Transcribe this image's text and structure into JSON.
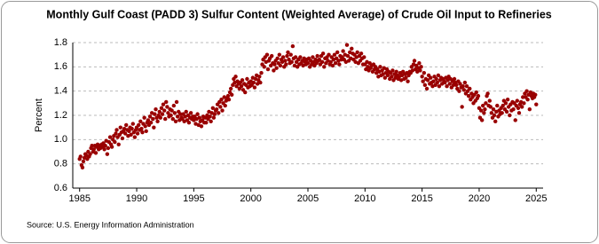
{
  "chart_data": {
    "type": "scatter",
    "title": "Monthly Gulf Coast (PADD 3) Sulfur Content (Weighted Average) of Crude Oil Input to Refineries",
    "ylabel": "Percent",
    "source": "Source: U.S. Energy Information Administration",
    "color": "#990000",
    "grid": true,
    "xlim": [
      1984.4,
      2025.6
    ],
    "ylim": [
      0.6,
      1.8
    ],
    "xticks": [
      1985,
      1990,
      1995,
      2000,
      2005,
      2010,
      2015,
      2020,
      2025
    ],
    "yticks": [
      0.6,
      0.8,
      {
        "value": 1,
        "label": "1.0"
      },
      1.2,
      1.4,
      1.6,
      1.8
    ],
    "x": [
      1985,
      1985.08,
      1985.17,
      1985.25,
      1985.33,
      1985.42,
      1985.5,
      1985.58,
      1985.67,
      1985.75,
      1985.83,
      1985.92,
      1986,
      1986.08,
      1986.17,
      1986.25,
      1986.33,
      1986.42,
      1986.5,
      1986.58,
      1986.67,
      1986.75,
      1986.83,
      1986.92,
      1987,
      1987.08,
      1987.17,
      1987.25,
      1987.33,
      1987.42,
      1987.5,
      1987.58,
      1987.67,
      1987.75,
      1987.83,
      1987.92,
      1988,
      1988.08,
      1988.17,
      1988.25,
      1988.33,
      1988.42,
      1988.5,
      1988.58,
      1988.67,
      1988.75,
      1988.83,
      1988.92,
      1989,
      1989.08,
      1989.17,
      1989.25,
      1989.33,
      1989.42,
      1989.5,
      1989.58,
      1989.67,
      1989.75,
      1989.83,
      1989.92,
      1990,
      1990.08,
      1990.17,
      1990.25,
      1990.33,
      1990.42,
      1990.5,
      1990.58,
      1990.67,
      1990.75,
      1990.83,
      1990.92,
      1991,
      1991.08,
      1991.17,
      1991.25,
      1991.33,
      1991.42,
      1991.5,
      1991.58,
      1991.67,
      1991.75,
      1991.83,
      1991.92,
      1992,
      1992.08,
      1992.17,
      1992.25,
      1992.33,
      1992.42,
      1992.5,
      1992.58,
      1992.67,
      1992.75,
      1992.83,
      1992.92,
      1993,
      1993.08,
      1993.17,
      1993.25,
      1993.33,
      1993.42,
      1993.5,
      1993.58,
      1993.67,
      1993.75,
      1993.83,
      1993.92,
      1994,
      1994.08,
      1994.17,
      1994.25,
      1994.33,
      1994.42,
      1994.5,
      1994.58,
      1994.67,
      1994.75,
      1994.83,
      1994.92,
      1995,
      1995.08,
      1995.17,
      1995.25,
      1995.33,
      1995.42,
      1995.5,
      1995.58,
      1995.67,
      1995.75,
      1995.83,
      1995.92,
      1996,
      1996.08,
      1996.17,
      1996.25,
      1996.33,
      1996.42,
      1996.5,
      1996.58,
      1996.67,
      1996.75,
      1996.83,
      1996.92,
      1997,
      1997.08,
      1997.17,
      1997.25,
      1997.33,
      1997.42,
      1997.5,
      1997.58,
      1997.67,
      1997.75,
      1997.83,
      1997.92,
      1998,
      1998.08,
      1998.17,
      1998.25,
      1998.33,
      1998.42,
      1998.5,
      1998.58,
      1998.67,
      1998.75,
      1998.83,
      1998.92,
      1999,
      1999.08,
      1999.17,
      1999.25,
      1999.33,
      1999.42,
      1999.5,
      1999.58,
      1999.67,
      1999.75,
      1999.83,
      1999.92,
      2000,
      2000.08,
      2000.17,
      2000.25,
      2000.33,
      2000.42,
      2000.5,
      2000.58,
      2000.67,
      2000.75,
      2000.83,
      2000.92,
      2001,
      2001.08,
      2001.17,
      2001.25,
      2001.33,
      2001.42,
      2001.5,
      2001.58,
      2001.67,
      2001.75,
      2001.83,
      2001.92,
      2002,
      2002.08,
      2002.17,
      2002.25,
      2002.33,
      2002.42,
      2002.5,
      2002.58,
      2002.67,
      2002.75,
      2002.83,
      2002.92,
      2003,
      2003.08,
      2003.17,
      2003.25,
      2003.33,
      2003.42,
      2003.5,
      2003.58,
      2003.67,
      2003.75,
      2003.83,
      2003.92,
      2004,
      2004.08,
      2004.17,
      2004.25,
      2004.33,
      2004.42,
      2004.5,
      2004.58,
      2004.67,
      2004.75,
      2004.83,
      2004.92,
      2005,
      2005.08,
      2005.17,
      2005.25,
      2005.33,
      2005.42,
      2005.5,
      2005.58,
      2005.67,
      2005.75,
      2005.83,
      2005.92,
      2006,
      2006.08,
      2006.17,
      2006.25,
      2006.33,
      2006.42,
      2006.5,
      2006.58,
      2006.67,
      2006.75,
      2006.83,
      2006.92,
      2007,
      2007.08,
      2007.17,
      2007.25,
      2007.33,
      2007.42,
      2007.5,
      2007.58,
      2007.67,
      2007.75,
      2007.83,
      2007.92,
      2008,
      2008.08,
      2008.17,
      2008.25,
      2008.33,
      2008.42,
      2008.5,
      2008.58,
      2008.67,
      2008.75,
      2008.83,
      2008.92,
      2009,
      2009.08,
      2009.17,
      2009.25,
      2009.33,
      2009.42,
      2009.5,
      2009.58,
      2009.67,
      2009.75,
      2009.83,
      2009.92,
      2010,
      2010.08,
      2010.17,
      2010.25,
      2010.33,
      2010.42,
      2010.5,
      2010.58,
      2010.67,
      2010.75,
      2010.83,
      2010.92,
      2011,
      2011.08,
      2011.17,
      2011.25,
      2011.33,
      2011.42,
      2011.5,
      2011.58,
      2011.67,
      2011.75,
      2011.83,
      2011.92,
      2012,
      2012.08,
      2012.17,
      2012.25,
      2012.33,
      2012.42,
      2012.5,
      2012.58,
      2012.67,
      2012.75,
      2012.83,
      2012.92,
      2013,
      2013.08,
      2013.17,
      2013.25,
      2013.33,
      2013.42,
      2013.5,
      2013.58,
      2013.67,
      2013.75,
      2013.83,
      2013.92,
      2014,
      2014.08,
      2014.17,
      2014.25,
      2014.33,
      2014.42,
      2014.5,
      2014.58,
      2014.67,
      2014.75,
      2014.83,
      2014.92,
      2015,
      2015.08,
      2015.17,
      2015.25,
      2015.33,
      2015.42,
      2015.5,
      2015.58,
      2015.67,
      2015.75,
      2015.83,
      2015.92,
      2016,
      2016.08,
      2016.17,
      2016.25,
      2016.33,
      2016.42,
      2016.5,
      2016.58,
      2016.67,
      2016.75,
      2016.83,
      2016.92,
      2017,
      2017.08,
      2017.17,
      2017.25,
      2017.33,
      2017.42,
      2017.5,
      2017.58,
      2017.67,
      2017.75,
      2017.83,
      2017.92,
      2018,
      2018.08,
      2018.17,
      2018.25,
      2018.33,
      2018.42,
      2018.5,
      2018.58,
      2018.67,
      2018.75,
      2018.83,
      2018.92,
      2019,
      2019.08,
      2019.17,
      2019.25,
      2019.33,
      2019.42,
      2019.5,
      2019.58,
      2019.67,
      2019.75,
      2019.83,
      2019.92,
      2020,
      2020.08,
      2020.17,
      2020.25,
      2020.33,
      2020.42,
      2020.5,
      2020.58,
      2020.67,
      2020.75,
      2020.83,
      2020.92,
      2021,
      2021.08,
      2021.17,
      2021.25,
      2021.33,
      2021.42,
      2021.5,
      2021.58,
      2021.67,
      2021.75,
      2021.83,
      2021.92,
      2022,
      2022.08,
      2022.17,
      2022.25,
      2022.33,
      2022.42,
      2022.5,
      2022.58,
      2022.67,
      2022.75,
      2022.83,
      2022.92,
      2023,
      2023.08,
      2023.17,
      2023.25,
      2023.33,
      2023.42,
      2023.5,
      2023.58,
      2023.67,
      2023.75,
      2023.83,
      2023.92,
      2024,
      2024.08,
      2024.17,
      2024.25,
      2024.33,
      2024.42,
      2024.5,
      2024.58,
      2024.67,
      2024.75,
      2024.83,
      2024.92,
      2025
    ],
    "values": [
      0.84,
      0.86,
      0.79,
      0.77,
      0.82,
      0.85,
      0.88,
      0.87,
      0.84,
      0.9,
      0.86,
      0.88,
      0.93,
      0.95,
      0.9,
      0.92,
      0.95,
      0.89,
      0.94,
      0.96,
      0.92,
      0.95,
      0.93,
      0.96,
      0.94,
      0.97,
      0.92,
      0.95,
      0.99,
      0.88,
      0.93,
      0.98,
      1.02,
      0.96,
      0.94,
      1.0,
      1.03,
      0.98,
      1.05,
      1.08,
      1.02,
      0.96,
      1.04,
      1.1,
      1.06,
      1.01,
      1.07,
      1.09,
      1.05,
      1.12,
      1.08,
      1.03,
      1.07,
      1.1,
      1.04,
      1.09,
      1.13,
      1.06,
      1.02,
      1.08,
      1.1,
      1.05,
      1.12,
      1.08,
      1.15,
      1.09,
      1.06,
      1.13,
      1.18,
      1.11,
      1.07,
      1.14,
      1.16,
      1.12,
      1.19,
      1.14,
      1.22,
      1.17,
      1.1,
      1.21,
      1.25,
      1.18,
      1.15,
      1.2,
      1.23,
      1.18,
      1.26,
      1.21,
      1.29,
      1.24,
      1.17,
      1.31,
      1.27,
      1.22,
      1.19,
      1.25,
      1.2,
      1.24,
      1.17,
      1.28,
      1.22,
      1.15,
      1.31,
      1.19,
      1.23,
      1.16,
      1.21,
      1.18,
      1.17,
      1.21,
      1.15,
      1.19,
      1.23,
      1.16,
      1.2,
      1.14,
      1.18,
      1.22,
      1.17,
      1.19,
      1.16,
      1.19,
      1.13,
      1.17,
      1.21,
      1.12,
      1.18,
      1.15,
      1.11,
      1.16,
      1.19,
      1.14,
      1.18,
      1.14,
      1.2,
      1.17,
      1.23,
      1.19,
      1.15,
      1.22,
      1.26,
      1.18,
      1.21,
      1.24,
      1.25,
      1.29,
      1.22,
      1.31,
      1.27,
      1.33,
      1.24,
      1.3,
      1.35,
      1.28,
      1.32,
      1.34,
      1.36,
      1.33,
      1.39,
      1.42,
      1.37,
      1.45,
      1.5,
      1.47,
      1.52,
      1.44,
      1.48,
      1.46,
      1.42,
      1.47,
      1.44,
      1.49,
      1.41,
      1.46,
      1.39,
      1.45,
      1.5,
      1.43,
      1.47,
      1.44,
      1.48,
      1.45,
      1.51,
      1.47,
      1.43,
      1.5,
      1.53,
      1.46,
      1.49,
      1.52,
      1.47,
      1.55,
      1.62,
      1.66,
      1.6,
      1.68,
      1.64,
      1.7,
      1.58,
      1.65,
      1.67,
      1.61,
      1.69,
      1.63,
      1.57,
      1.62,
      1.65,
      1.59,
      1.67,
      1.63,
      1.7,
      1.61,
      1.66,
      1.64,
      1.68,
      1.6,
      1.65,
      1.62,
      1.69,
      1.72,
      1.66,
      1.63,
      1.7,
      1.64,
      1.77,
      1.67,
      1.61,
      1.68,
      1.64,
      1.6,
      1.66,
      1.62,
      1.68,
      1.63,
      1.65,
      1.61,
      1.67,
      1.64,
      1.62,
      1.66,
      1.63,
      1.67,
      1.6,
      1.65,
      1.62,
      1.68,
      1.64,
      1.61,
      1.66,
      1.63,
      1.69,
      1.65,
      1.66,
      1.62,
      1.69,
      1.64,
      1.71,
      1.6,
      1.67,
      1.63,
      1.68,
      1.65,
      1.7,
      1.62,
      1.64,
      1.68,
      1.61,
      1.66,
      1.7,
      1.63,
      1.67,
      1.72,
      1.65,
      1.62,
      1.69,
      1.66,
      1.68,
      1.73,
      1.66,
      1.7,
      1.64,
      1.78,
      1.69,
      1.65,
      1.72,
      1.67,
      1.75,
      1.71,
      1.66,
      1.7,
      1.64,
      1.68,
      1.72,
      1.63,
      1.69,
      1.65,
      1.71,
      1.67,
      1.62,
      1.68,
      1.62,
      1.58,
      1.64,
      1.6,
      1.57,
      1.63,
      1.59,
      1.61,
      1.56,
      1.62,
      1.58,
      1.6,
      1.55,
      1.58,
      1.52,
      1.56,
      1.6,
      1.53,
      1.57,
      1.54,
      1.59,
      1.51,
      1.55,
      1.58,
      1.53,
      1.56,
      1.5,
      1.55,
      1.52,
      1.57,
      1.49,
      1.54,
      1.51,
      1.56,
      1.53,
      1.5,
      1.52,
      1.55,
      1.49,
      1.53,
      1.56,
      1.5,
      1.54,
      1.51,
      1.55,
      1.48,
      1.53,
      1.56,
      1.55,
      1.6,
      1.57,
      1.62,
      1.65,
      1.58,
      1.61,
      1.56,
      1.59,
      1.63,
      1.57,
      1.6,
      1.52,
      1.48,
      1.55,
      1.45,
      1.5,
      1.42,
      1.49,
      1.53,
      1.46,
      1.51,
      1.47,
      1.44,
      1.48,
      1.52,
      1.45,
      1.5,
      1.47,
      1.53,
      1.44,
      1.49,
      1.51,
      1.46,
      1.5,
      1.48,
      1.47,
      1.51,
      1.44,
      1.49,
      1.52,
      1.46,
      1.5,
      1.43,
      1.48,
      1.45,
      1.5,
      1.47,
      1.45,
      1.42,
      1.48,
      1.4,
      1.46,
      1.43,
      1.27,
      1.44,
      1.41,
      1.47,
      1.38,
      1.44,
      1.4,
      1.36,
      1.42,
      1.33,
      1.38,
      1.35,
      1.3,
      1.37,
      1.32,
      1.39,
      1.34,
      1.36,
      1.26,
      1.18,
      1.24,
      1.16,
      1.28,
      1.22,
      1.25,
      1.3,
      1.36,
      1.38,
      1.28,
      1.32,
      1.27,
      1.22,
      1.18,
      1.25,
      1.2,
      1.15,
      1.23,
      1.28,
      1.19,
      1.24,
      1.21,
      1.26,
      1.22,
      1.28,
      1.32,
      1.25,
      1.3,
      1.23,
      1.33,
      1.27,
      1.2,
      1.29,
      1.24,
      1.31,
      1.25,
      1.3,
      1.16,
      1.28,
      1.32,
      1.26,
      1.22,
      1.29,
      1.31,
      1.27,
      1.35,
      1.3,
      1.38,
      1.35,
      1.4,
      1.33,
      1.37,
      1.25,
      1.39,
      1.36,
      1.34,
      1.38,
      1.35,
      1.37,
      1.29
    ]
  }
}
